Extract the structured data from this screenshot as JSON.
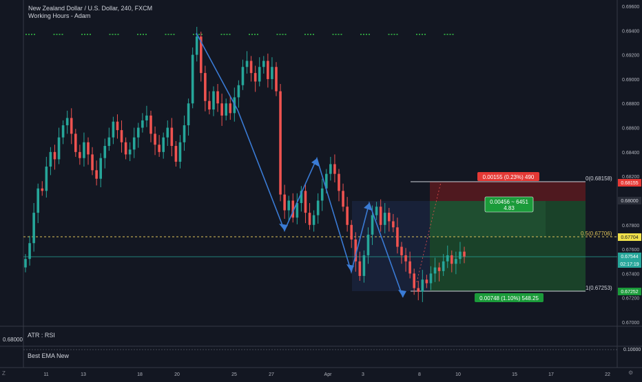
{
  "header": {
    "title": "New Zealand Dollar / U.S. Dollar, 240, FXCM",
    "indicator": "Working Hours - Adam"
  },
  "price_axis": {
    "labels": [
      "0.69600",
      "0.69400",
      "0.69200",
      "0.69000",
      "0.68800",
      "0.68600",
      "0.68400",
      "0.68200",
      "0.68000",
      "0.67800",
      "0.67600",
      "0.67400",
      "0.67200",
      "0.67000"
    ],
    "badges": {
      "stop": "0.68155",
      "entry_bar": "0.68000",
      "level_05": "0.67704",
      "last": "0.67544",
      "countdown": "02:17:19",
      "target": "0.67252"
    },
    "rsi_level": "0.10000"
  },
  "time_axis": [
    "11",
    "13",
    "18",
    "20",
    "25",
    "27",
    "Apr",
    "3",
    "8",
    "10",
    "15",
    "17",
    "22"
  ],
  "fib": {
    "level_0": "0(0.68158)",
    "level_05": "0.5(0.67706)",
    "level_1": "1(0.67253)"
  },
  "position": {
    "risk_label": "0.00155 (0.23%) 490",
    "reward_label": "0.00748 (1.10%) 548.25",
    "ratio_line1": "0.00456 ~ 6451",
    "ratio_line2": "4.83"
  },
  "panes": {
    "atr_label": "ATR : RSI",
    "ema_label": "Best EMA New",
    "atr_value": "0.68000"
  },
  "corners": {
    "z": "Z",
    "gear": "⚙"
  },
  "colors": {
    "up": "#26a69a",
    "down": "#ef5350",
    "bg": "#131722",
    "wave": "#3a7bd5",
    "green_zone": "#1c4a2a",
    "red_zone": "#5a1a1f"
  },
  "chart_data": {
    "type": "candlestick",
    "symbol": "NZDUSD",
    "timeframe": "240",
    "ylim": [
      0.669,
      0.697
    ],
    "last_price": 0.67544,
    "closes": [
      0.6752,
      0.6765,
      0.679,
      0.681,
      0.6808,
      0.6828,
      0.684,
      0.6834,
      0.6852,
      0.6862,
      0.6868,
      0.6855,
      0.684,
      0.6835,
      0.6848,
      0.6838,
      0.6825,
      0.6818,
      0.6835,
      0.6845,
      0.6852,
      0.6865,
      0.6858,
      0.6848,
      0.6838,
      0.6842,
      0.6852,
      0.686,
      0.6866,
      0.687,
      0.6855,
      0.6846,
      0.684,
      0.6852,
      0.686,
      0.6845,
      0.6832,
      0.6848,
      0.6862,
      0.688,
      0.692,
      0.6935,
      0.6905,
      0.6882,
      0.6875,
      0.689,
      0.688,
      0.687,
      0.688,
      0.6872,
      0.6885,
      0.6895,
      0.691,
      0.6915,
      0.6905,
      0.6898,
      0.691,
      0.6915,
      0.69,
      0.691,
      0.689,
      0.6805,
      0.6792,
      0.68,
      0.6786,
      0.6798,
      0.6808,
      0.679,
      0.678,
      0.6788,
      0.68,
      0.681,
      0.6822,
      0.683,
      0.6822,
      0.6808,
      0.6795,
      0.678,
      0.6768,
      0.675,
      0.6738,
      0.6755,
      0.6772,
      0.6788,
      0.6795,
      0.678,
      0.679,
      0.6783,
      0.6778,
      0.6762,
      0.6755,
      0.675,
      0.674,
      0.6728,
      0.6725,
      0.6735,
      0.6732,
      0.674,
      0.6745,
      0.6742,
      0.675,
      0.6755,
      0.6748,
      0.6752,
      0.6758,
      0.6754
    ]
  }
}
